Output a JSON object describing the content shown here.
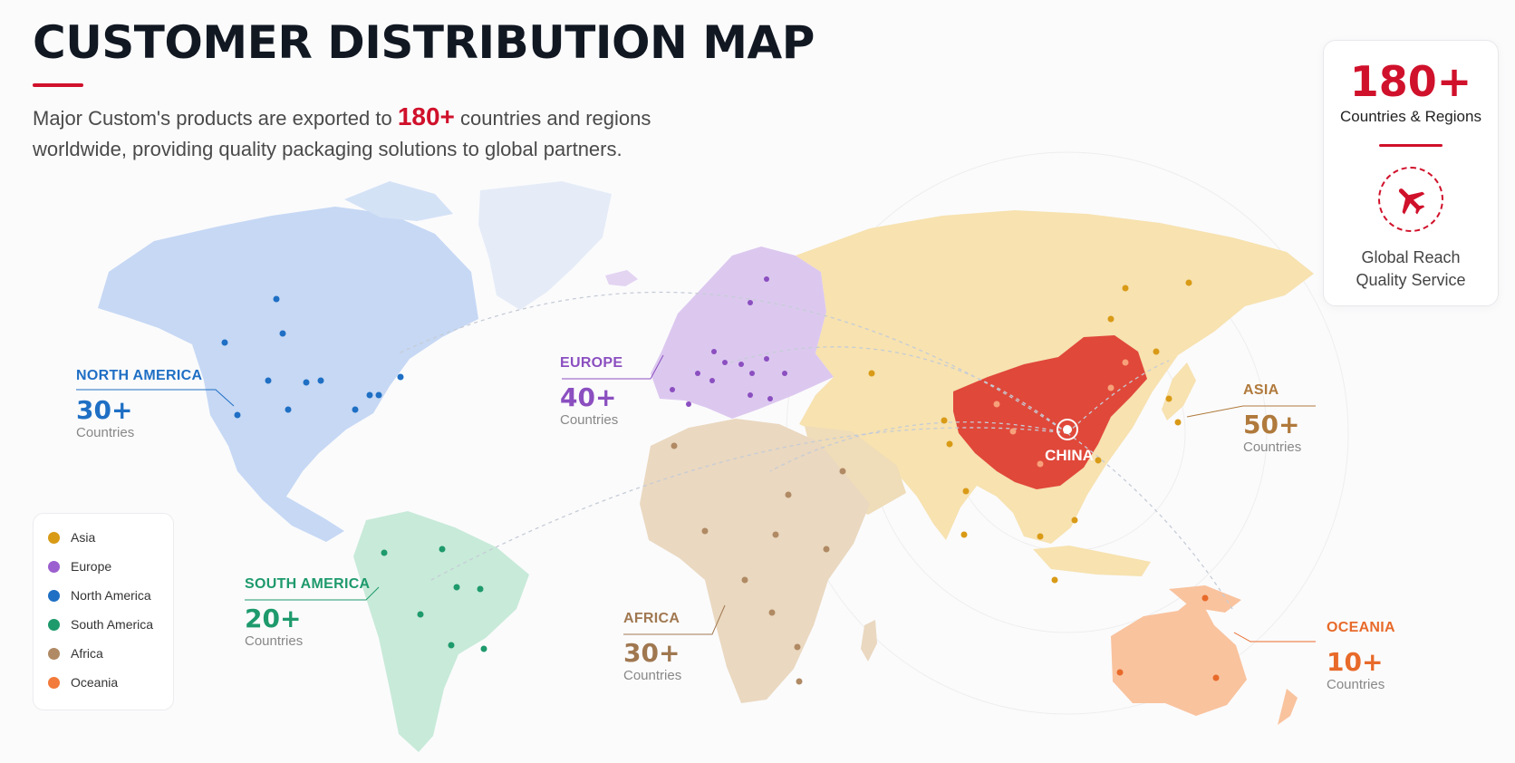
{
  "header": {
    "title": "CUSTOMER DISTRIBUTION MAP",
    "subtitle_before": "Major Custom's products are exported to ",
    "subtitle_highlight": "180+",
    "subtitle_after": " countries and regions worldwide, providing quality packaging solutions to global partners."
  },
  "stats_card": {
    "number": "180+",
    "label": "Countries & Regions",
    "tagline_line1": "Global Reach",
    "tagline_line2": "Quality Service",
    "icon": "airplane-icon"
  },
  "hub": {
    "label": "CHINA"
  },
  "regions": {
    "north_america": {
      "name": "NORTH AMERICA",
      "count": "30+",
      "sub": "Countries",
      "color": "#1f6fc4"
    },
    "europe": {
      "name": "EUROPE",
      "count": "40+",
      "sub": "Countries",
      "color": "#8b4fc0"
    },
    "asia": {
      "name": "ASIA",
      "count": "50+",
      "sub": "Countries",
      "color": "#b07a3c"
    },
    "south_america": {
      "name": "SOUTH AMERICA",
      "count": "20+",
      "sub": "Countries",
      "color": "#1e9a6c"
    },
    "africa": {
      "name": "AFRICA",
      "count": "30+",
      "sub": "Countries",
      "color": "#a07850"
    },
    "oceania": {
      "name": "OCEANIA",
      "count": "10+",
      "sub": "Countries",
      "color": "#e86a2a"
    }
  },
  "legend": [
    {
      "label": "Asia",
      "color": "#d99a16"
    },
    {
      "label": "Europe",
      "color": "#9b5fcf"
    },
    {
      "label": "North America",
      "color": "#1f6fc4"
    },
    {
      "label": "South America",
      "color": "#1e9a6c"
    },
    {
      "label": "Africa",
      "color": "#b08a64"
    },
    {
      "label": "Oceania",
      "color": "#f27a3a"
    }
  ],
  "colors": {
    "accent": "#d0112b",
    "north_america_fill": "#c6d8f4",
    "europe_fill": "#dcc8ef",
    "asia_fill": "#f7e2b0",
    "china_fill": "#e0483a",
    "south_america_fill": "#c8ead9",
    "africa_fill": "#ead8c0",
    "oceania_fill": "#f9c39e"
  }
}
